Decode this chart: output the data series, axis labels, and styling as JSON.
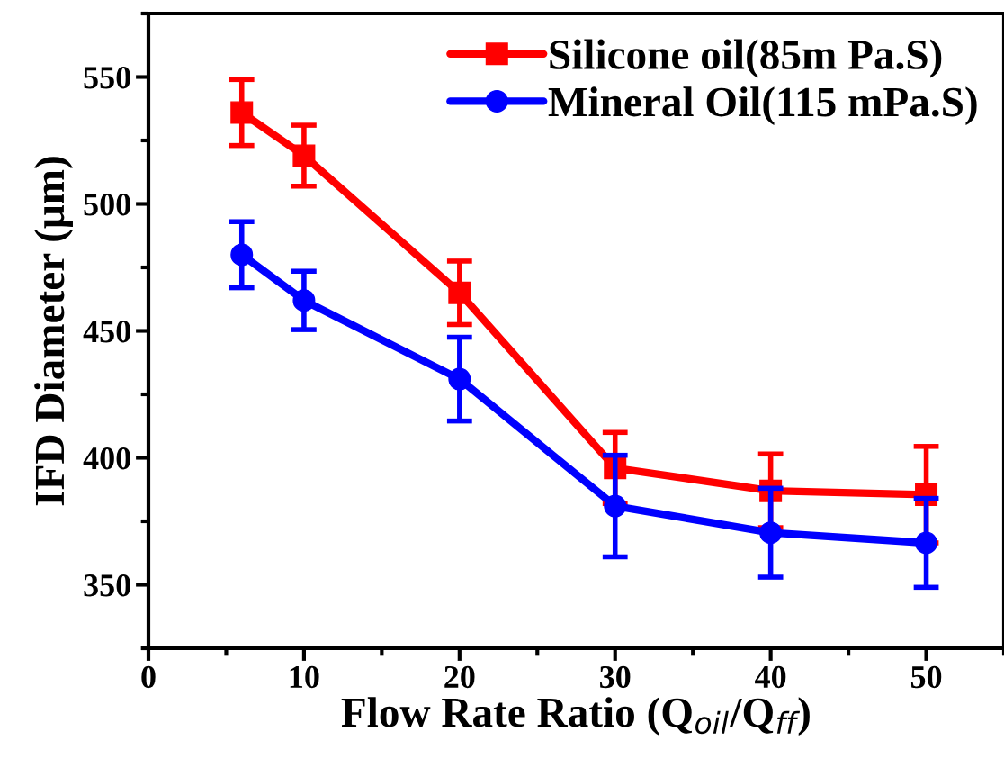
{
  "chart_data": {
    "type": "line",
    "xlabel": "Flow Rate Ratio (Q$_{oil}$/Q$_{ff}$)",
    "ylabel": "IFD Diameter (μm)",
    "x": [
      6,
      10,
      20,
      30,
      40,
      50
    ],
    "series": [
      {
        "name": "Silicone oil(85m Pa.S)",
        "color": "#ff0000",
        "marker": "square",
        "values": [
          536,
          519,
          465,
          396,
          387,
          385.5
        ],
        "errors": [
          13,
          12,
          12.5,
          14,
          14.5,
          19
        ]
      },
      {
        "name": "Mineral Oil(115 mPa.S)",
        "color": "#0000ff",
        "marker": "circle",
        "values": [
          480,
          462,
          431,
          381,
          370.5,
          366.5
        ],
        "errors": [
          13,
          11.5,
          16.5,
          20,
          17.5,
          17.5
        ]
      }
    ],
    "xlim": [
      0,
      55
    ],
    "xticks": [
      0,
      10,
      20,
      30,
      40,
      50
    ],
    "ylim": [
      325,
      575
    ],
    "yticks": [
      350,
      400,
      450,
      500,
      550
    ],
    "grid": false,
    "legend": "top right",
    "line_style": "solid"
  }
}
